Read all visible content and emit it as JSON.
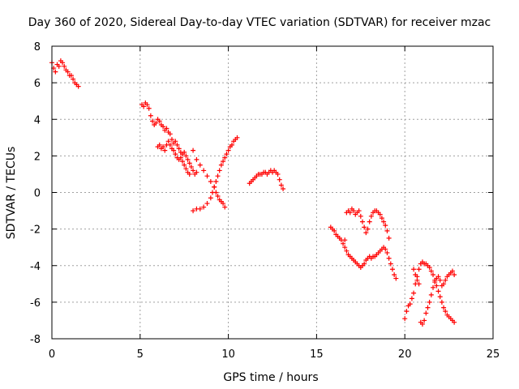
{
  "chart_data": {
    "type": "scatter",
    "title": "Day 360 of 2020, Sidereal Day-to-day VTEC variation (SDTVAR) for receiver mzac",
    "xlabel": "GPS time / hours",
    "ylabel": "SDTVAR / TECUs",
    "xlim": [
      0,
      25
    ],
    "ylim": [
      -8,
      8
    ],
    "xticks": [
      "0",
      "5",
      "10",
      "15",
      "20",
      "25"
    ],
    "yticks": [
      "-8",
      "-6",
      "-4",
      "-2",
      "0",
      "2",
      "4",
      "6",
      "8"
    ],
    "grid": true,
    "legend": "none",
    "marker": "plus",
    "color": "#ff0000",
    "series": [
      {
        "points": [
          [
            0.0,
            7.1
          ],
          [
            0.1,
            6.8
          ],
          [
            0.2,
            6.6
          ],
          [
            0.3,
            7.0
          ],
          [
            0.4,
            6.9
          ],
          [
            0.5,
            7.2
          ],
          [
            0.6,
            7.1
          ],
          [
            0.7,
            6.9
          ],
          [
            0.8,
            6.7
          ],
          [
            0.9,
            6.6
          ],
          [
            1.0,
            6.4
          ],
          [
            1.1,
            6.4
          ],
          [
            1.2,
            6.2
          ],
          [
            1.3,
            6.0
          ],
          [
            1.4,
            5.9
          ],
          [
            1.5,
            5.8
          ]
        ]
      },
      {
        "points": [
          [
            5.1,
            4.8
          ],
          [
            5.2,
            4.7
          ],
          [
            5.3,
            4.9
          ],
          [
            5.4,
            4.8
          ],
          [
            5.5,
            4.6
          ],
          [
            5.6,
            4.2
          ],
          [
            5.7,
            3.9
          ],
          [
            5.8,
            3.7
          ],
          [
            5.9,
            3.8
          ],
          [
            6.0,
            4.0
          ],
          [
            6.1,
            3.9
          ],
          [
            6.2,
            3.7
          ],
          [
            6.3,
            3.6
          ],
          [
            6.4,
            3.4
          ],
          [
            6.5,
            3.5
          ],
          [
            6.6,
            3.3
          ],
          [
            6.7,
            3.2
          ],
          [
            6.8,
            2.9
          ],
          [
            6.9,
            2.7
          ],
          [
            7.0,
            2.8
          ],
          [
            7.1,
            2.6
          ],
          [
            7.2,
            2.4
          ],
          [
            7.3,
            2.2
          ],
          [
            7.4,
            2.1
          ],
          [
            7.5,
            2.2
          ],
          [
            7.6,
            2.0
          ],
          [
            7.7,
            1.8
          ],
          [
            7.8,
            1.6
          ],
          [
            7.9,
            1.4
          ],
          [
            8.0,
            1.2
          ],
          [
            8.1,
            1.0
          ],
          [
            8.2,
            1.1
          ]
        ]
      },
      {
        "points": [
          [
            6.0,
            2.5
          ],
          [
            6.1,
            2.6
          ],
          [
            6.2,
            2.4
          ],
          [
            6.3,
            2.5
          ],
          [
            6.4,
            2.3
          ],
          [
            6.5,
            2.6
          ],
          [
            6.6,
            2.8
          ],
          [
            6.7,
            2.6
          ],
          [
            6.8,
            2.4
          ],
          [
            6.9,
            2.3
          ],
          [
            7.0,
            2.1
          ],
          [
            7.1,
            1.9
          ],
          [
            7.2,
            1.8
          ],
          [
            7.3,
            1.9
          ],
          [
            7.4,
            1.7
          ],
          [
            7.5,
            1.5
          ],
          [
            7.6,
            1.3
          ],
          [
            7.7,
            1.1
          ],
          [
            7.8,
            1.0
          ]
        ]
      },
      {
        "points": [
          [
            8.0,
            2.3
          ],
          [
            8.2,
            1.8
          ],
          [
            8.4,
            1.5
          ],
          [
            8.6,
            1.2
          ],
          [
            8.8,
            0.9
          ],
          [
            9.0,
            0.6
          ],
          [
            9.2,
            0.3
          ],
          [
            9.3,
            0.0
          ],
          [
            9.4,
            -0.2
          ],
          [
            9.5,
            -0.4
          ],
          [
            9.6,
            -0.5
          ],
          [
            9.7,
            -0.6
          ],
          [
            9.8,
            -0.8
          ]
        ]
      },
      {
        "points": [
          [
            8.0,
            -1.0
          ],
          [
            8.2,
            -0.9
          ],
          [
            8.4,
            -0.9
          ],
          [
            8.6,
            -0.8
          ],
          [
            8.8,
            -0.6
          ],
          [
            9.0,
            -0.3
          ],
          [
            9.1,
            0.0
          ],
          [
            9.2,
            0.3
          ],
          [
            9.3,
            0.6
          ],
          [
            9.4,
            0.9
          ],
          [
            9.5,
            1.2
          ],
          [
            9.6,
            1.5
          ],
          [
            9.7,
            1.7
          ],
          [
            9.8,
            1.9
          ],
          [
            9.9,
            2.1
          ],
          [
            10.0,
            2.3
          ],
          [
            10.1,
            2.5
          ],
          [
            10.2,
            2.6
          ],
          [
            10.3,
            2.8
          ],
          [
            10.4,
            2.9
          ],
          [
            10.5,
            3.0
          ]
        ]
      },
      {
        "points": [
          [
            11.2,
            0.5
          ],
          [
            11.3,
            0.6
          ],
          [
            11.4,
            0.7
          ],
          [
            11.5,
            0.8
          ],
          [
            11.6,
            0.9
          ],
          [
            11.7,
            1.0
          ],
          [
            11.8,
            1.0
          ],
          [
            11.9,
            1.0
          ],
          [
            12.0,
            1.1
          ],
          [
            12.1,
            1.1
          ],
          [
            12.2,
            1.0
          ],
          [
            12.3,
            1.1
          ],
          [
            12.4,
            1.2
          ],
          [
            12.5,
            1.1
          ],
          [
            12.6,
            1.2
          ],
          [
            12.7,
            1.1
          ],
          [
            12.8,
            1.0
          ],
          [
            12.9,
            0.7
          ],
          [
            13.0,
            0.4
          ],
          [
            13.1,
            0.2
          ]
        ]
      },
      {
        "points": [
          [
            15.8,
            -1.9
          ],
          [
            15.9,
            -2.0
          ],
          [
            16.0,
            -2.1
          ],
          [
            16.1,
            -2.3
          ],
          [
            16.2,
            -2.4
          ],
          [
            16.3,
            -2.5
          ],
          [
            16.4,
            -2.6
          ],
          [
            16.5,
            -2.8
          ],
          [
            16.6,
            -3.0
          ],
          [
            16.7,
            -3.2
          ],
          [
            16.8,
            -3.4
          ],
          [
            16.9,
            -3.5
          ],
          [
            17.0,
            -3.6
          ],
          [
            17.1,
            -3.7
          ],
          [
            17.2,
            -3.8
          ],
          [
            17.3,
            -3.9
          ],
          [
            17.4,
            -4.0
          ],
          [
            17.5,
            -4.1
          ],
          [
            17.6,
            -4.0
          ],
          [
            17.7,
            -3.9
          ],
          [
            17.8,
            -3.7
          ],
          [
            17.9,
            -3.6
          ],
          [
            18.0,
            -3.5
          ],
          [
            18.1,
            -3.6
          ],
          [
            18.2,
            -3.5
          ],
          [
            18.3,
            -3.5
          ],
          [
            18.4,
            -3.4
          ],
          [
            18.5,
            -3.3
          ],
          [
            18.6,
            -3.2
          ],
          [
            18.7,
            -3.1
          ],
          [
            18.8,
            -3.0
          ],
          [
            18.9,
            -3.1
          ],
          [
            19.0,
            -3.3
          ],
          [
            19.1,
            -3.6
          ],
          [
            19.2,
            -3.9
          ],
          [
            19.3,
            -4.2
          ],
          [
            19.4,
            -4.5
          ],
          [
            19.5,
            -4.7
          ]
        ]
      },
      {
        "points": [
          [
            16.6,
            -2.6
          ],
          [
            16.7,
            -1.1
          ],
          [
            16.8,
            -1.0
          ],
          [
            16.9,
            -1.1
          ],
          [
            17.0,
            -0.9
          ],
          [
            17.1,
            -1.0
          ],
          [
            17.2,
            -1.2
          ],
          [
            17.3,
            -1.1
          ],
          [
            17.4,
            -1.0
          ],
          [
            17.5,
            -1.3
          ],
          [
            17.6,
            -1.6
          ],
          [
            17.7,
            -1.9
          ],
          [
            17.8,
            -2.2
          ],
          [
            17.9,
            -2.0
          ],
          [
            18.0,
            -1.6
          ],
          [
            18.1,
            -1.3
          ],
          [
            18.2,
            -1.1
          ],
          [
            18.3,
            -1.0
          ],
          [
            18.4,
            -1.0
          ],
          [
            18.5,
            -1.1
          ],
          [
            18.6,
            -1.2
          ],
          [
            18.7,
            -1.4
          ],
          [
            18.8,
            -1.6
          ],
          [
            18.9,
            -1.8
          ],
          [
            19.0,
            -2.1
          ],
          [
            19.1,
            -2.5
          ]
        ]
      },
      {
        "points": [
          [
            20.0,
            -6.9
          ],
          [
            20.1,
            -6.5
          ],
          [
            20.2,
            -6.2
          ],
          [
            20.3,
            -6.1
          ],
          [
            20.4,
            -5.8
          ],
          [
            20.5,
            -5.5
          ],
          [
            20.6,
            -5.0
          ],
          [
            20.7,
            -4.6
          ],
          [
            20.8,
            -4.2
          ],
          [
            20.9,
            -3.9
          ],
          [
            21.0,
            -3.8
          ],
          [
            21.1,
            -3.9
          ],
          [
            21.2,
            -3.9
          ],
          [
            21.3,
            -4.0
          ],
          [
            21.4,
            -4.1
          ],
          [
            21.5,
            -4.3
          ],
          [
            21.6,
            -4.5
          ],
          [
            21.7,
            -4.8
          ],
          [
            21.8,
            -5.1
          ],
          [
            21.9,
            -5.4
          ],
          [
            22.0,
            -5.7
          ],
          [
            22.1,
            -6.0
          ],
          [
            22.2,
            -6.3
          ],
          [
            22.3,
            -6.5
          ],
          [
            22.4,
            -6.7
          ],
          [
            22.5,
            -6.8
          ],
          [
            22.6,
            -6.9
          ],
          [
            22.7,
            -7.0
          ],
          [
            22.8,
            -7.1
          ]
        ]
      },
      {
        "points": [
          [
            20.9,
            -7.1
          ],
          [
            21.0,
            -7.2
          ],
          [
            21.1,
            -7.0
          ],
          [
            21.2,
            -6.6
          ],
          [
            21.3,
            -6.3
          ],
          [
            21.4,
            -6.0
          ],
          [
            21.5,
            -5.6
          ],
          [
            21.6,
            -5.2
          ],
          [
            21.7,
            -4.9
          ],
          [
            21.8,
            -4.7
          ],
          [
            21.9,
            -4.6
          ],
          [
            22.0,
            -4.8
          ],
          [
            22.1,
            -5.1
          ],
          [
            22.2,
            -5.0
          ],
          [
            22.3,
            -4.8
          ],
          [
            22.4,
            -4.6
          ],
          [
            22.5,
            -4.5
          ],
          [
            22.6,
            -4.4
          ],
          [
            22.7,
            -4.3
          ],
          [
            22.8,
            -4.5
          ]
        ]
      },
      {
        "points": [
          [
            20.5,
            -4.2
          ],
          [
            20.6,
            -4.5
          ],
          [
            20.7,
            -4.8
          ],
          [
            20.8,
            -5.0
          ]
        ]
      }
    ]
  }
}
